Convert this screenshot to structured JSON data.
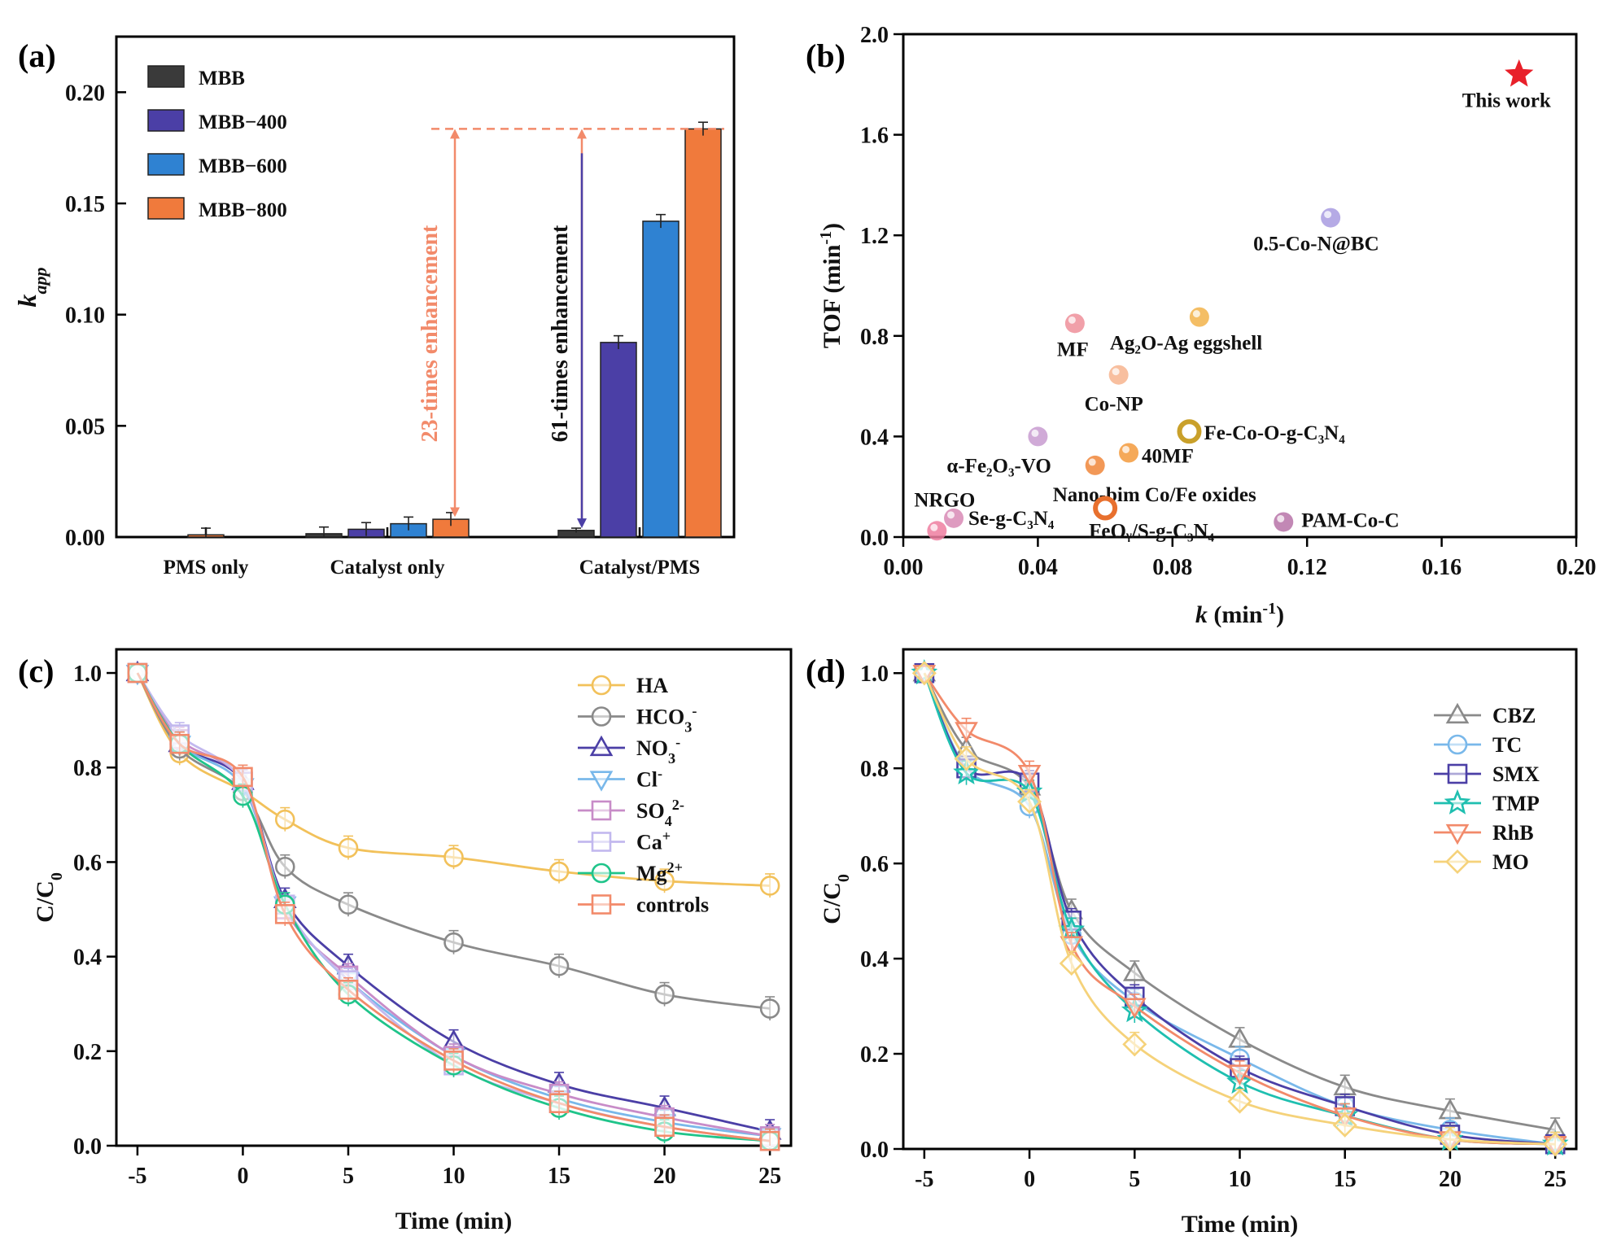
{
  "chart_data": [
    {
      "panel": "(a)",
      "type": "bar",
      "ylabel": "k",
      "ylabel_sub": "app",
      "ylim": [
        0,
        0.225
      ],
      "yticks": [
        "0.00",
        "0.05",
        "0.10",
        "0.15",
        "0.20"
      ],
      "ytick_values": [
        0,
        0.05,
        0.1,
        0.15,
        0.2
      ],
      "categories": [
        "PMS only",
        "Catalyst only",
        "Catalyst/PMS"
      ],
      "series": [
        {
          "name": "MBB",
          "color": "#3a3a3a",
          "values": [
            null,
            0.0015,
            0.003
          ],
          "errors": [
            null,
            0.003,
            0.001
          ]
        },
        {
          "name": "MBB−400",
          "color": "#4b3fa6",
          "values": [
            null,
            0.0035,
            0.0875
          ],
          "errors": [
            null,
            0.003,
            0.003
          ]
        },
        {
          "name": "MBB−600",
          "color": "#2f82d2",
          "values": [
            null,
            0.006,
            0.142
          ],
          "errors": [
            null,
            0.003,
            0.003
          ]
        },
        {
          "name": "MBB−800",
          "color": "#f07a3c",
          "values": [
            0.001,
            0.008,
            0.1835
          ],
          "errors": [
            0.003,
            0.003,
            0.003
          ]
        }
      ],
      "annotations": [
        "23-times enhancement",
        "61-times enhancement"
      ]
    },
    {
      "panel": "(b)",
      "type": "scatter",
      "xlabel": "k",
      "xlabel_unit": "(min",
      "xlabel_sup": "-1",
      "ylabel": "TOF (min",
      "ylabel_sup": "-1",
      "xlim": [
        0,
        0.2
      ],
      "ylim": [
        0,
        2.0
      ],
      "xticks": [
        "0.00",
        "0.04",
        "0.08",
        "0.12",
        "0.16",
        "0.20"
      ],
      "xtick_values": [
        0,
        0.04,
        0.08,
        0.12,
        0.16,
        0.2
      ],
      "yticks": [
        "0.0",
        "0.4",
        "0.8",
        "1.2",
        "1.6",
        "2.0"
      ],
      "ytick_values": [
        0,
        0.4,
        0.8,
        1.2,
        1.6,
        2.0
      ],
      "points": [
        {
          "label": "This work",
          "x": 0.183,
          "y": 1.84,
          "color": "#e8202a",
          "marker": "star"
        },
        {
          "label": "0.5-Co-N@BC",
          "x": 0.127,
          "y": 1.27,
          "color": "#a89be0",
          "marker": "ball"
        },
        {
          "label": "MF",
          "x": 0.051,
          "y": 0.85,
          "color": "#ef8f9a",
          "marker": "ball"
        },
        {
          "label": "Ag₂O-Ag eggshell",
          "x": 0.088,
          "y": 0.875,
          "color": "#f2b34a",
          "marker": "ball"
        },
        {
          "label": "Co-NP",
          "x": 0.064,
          "y": 0.645,
          "color": "#f7b48e",
          "marker": "ball"
        },
        {
          "label": "Fe-Co-O-g-C₃N₄",
          "x": 0.085,
          "y": 0.42,
          "color": "#c9a02a",
          "marker": "ring"
        },
        {
          "label": "α-Fe₂O₃-VO",
          "x": 0.04,
          "y": 0.4,
          "color": "#c89bd0",
          "marker": "ball"
        },
        {
          "label": "40MF",
          "x": 0.067,
          "y": 0.335,
          "color": "#f39a3c",
          "marker": "ball"
        },
        {
          "label": "Nano-bim Co/Fe oxides",
          "x": 0.057,
          "y": 0.285,
          "color": "#f0863a",
          "marker": "ball"
        },
        {
          "label": "NRGO",
          "x": 0.01,
          "y": 0.025,
          "color": "#ee7ea0",
          "marker": "ball"
        },
        {
          "label": "Se-g-C₃N₄",
          "x": 0.015,
          "y": 0.075,
          "color": "#d889b5",
          "marker": "ball"
        },
        {
          "label": "FeOᵧ/S-g-C₃N₄",
          "x": 0.06,
          "y": 0.115,
          "color": "#e8702e",
          "marker": "ring"
        },
        {
          "label": "PAM-Co-C",
          "x": 0.113,
          "y": 0.06,
          "color": "#b773a8",
          "marker": "ball"
        }
      ]
    },
    {
      "panel": "(c)",
      "type": "line",
      "xlabel": "Time (min)",
      "ylabel": "C/C",
      "ylabel_sub": "0",
      "xlim": [
        -6,
        26
      ],
      "ylim": [
        0,
        1.05
      ],
      "xticks": [
        "-5",
        "0",
        "5",
        "10",
        "15",
        "20",
        "25"
      ],
      "xtick_values": [
        -5,
        0,
        5,
        10,
        15,
        20,
        25
      ],
      "yticks": [
        "0.0",
        "0.2",
        "0.4",
        "0.6",
        "0.8",
        "1.0"
      ],
      "ytick_values": [
        0,
        0.2,
        0.4,
        0.6,
        0.8,
        1.0
      ],
      "x": [
        -5,
        -3,
        0,
        2,
        5,
        10,
        15,
        20,
        25
      ],
      "series": [
        {
          "name": "HA",
          "sup": "",
          "sub": "",
          "color": "#f2c15a",
          "marker": "circle",
          "values": [
            1.0,
            0.83,
            0.75,
            0.69,
            0.63,
            0.61,
            0.58,
            0.56,
            0.55
          ]
        },
        {
          "name": "HCO",
          "sub": "3",
          "sup": "-",
          "color": "#8a8a8a",
          "marker": "circle",
          "values": [
            1.0,
            0.84,
            0.75,
            0.59,
            0.51,
            0.43,
            0.38,
            0.32,
            0.29
          ]
        },
        {
          "name": "NO",
          "sub": "3",
          "sup": "-",
          "color": "#4b3fa6",
          "marker": "triangle-up",
          "values": [
            1.0,
            0.85,
            0.77,
            0.52,
            0.38,
            0.22,
            0.13,
            0.08,
            0.03
          ]
        },
        {
          "name": "Cl",
          "sub": "",
          "sup": "-",
          "color": "#79b8ea",
          "marker": "triangle-down",
          "values": [
            1.0,
            0.85,
            0.76,
            0.51,
            0.35,
            0.19,
            0.1,
            0.05,
            0.02
          ]
        },
        {
          "name": "SO",
          "sub": "4",
          "sup": "2-",
          "color": "#c88cc8",
          "marker": "square",
          "values": [
            1.0,
            0.86,
            0.77,
            0.5,
            0.36,
            0.19,
            0.11,
            0.06,
            0.02
          ]
        },
        {
          "name": "Ca",
          "sub": "",
          "sup": "+",
          "color": "#c2b8ee",
          "marker": "square",
          "values": [
            1.0,
            0.87,
            0.77,
            0.51,
            0.35,
            0.17,
            0.09,
            0.04,
            0.01
          ]
        },
        {
          "name": "Mg",
          "sub": "",
          "sup": "2+",
          "color": "#1fc48a",
          "marker": "circle",
          "values": [
            1.0,
            0.85,
            0.74,
            0.51,
            0.32,
            0.17,
            0.08,
            0.03,
            0.01
          ]
        },
        {
          "name": "controls",
          "sub": "",
          "sup": "",
          "color": "#f28a6a",
          "marker": "square",
          "values": [
            1.0,
            0.85,
            0.78,
            0.49,
            0.33,
            0.18,
            0.09,
            0.04,
            0.01
          ]
        }
      ]
    },
    {
      "panel": "(d)",
      "type": "line",
      "xlabel": "Time (min)",
      "ylabel": "C/C",
      "ylabel_sub": "0",
      "xlim": [
        -6,
        26
      ],
      "ylim": [
        0,
        1.05
      ],
      "xticks": [
        "-5",
        "0",
        "5",
        "10",
        "15",
        "20",
        "25"
      ],
      "xtick_values": [
        -5,
        0,
        5,
        10,
        15,
        20,
        25
      ],
      "yticks": [
        "0.0",
        "0.2",
        "0.4",
        "0.6",
        "0.8",
        "1.0"
      ],
      "ytick_values": [
        0,
        0.2,
        0.4,
        0.6,
        0.8,
        1.0
      ],
      "x": [
        -5,
        -3,
        0,
        2,
        5,
        10,
        15,
        20,
        25
      ],
      "series": [
        {
          "name": "CBZ",
          "color": "#8a8a8a",
          "marker": "triangle-up",
          "values": [
            1.0,
            0.84,
            0.76,
            0.5,
            0.37,
            0.23,
            0.13,
            0.08,
            0.04
          ]
        },
        {
          "name": "TC",
          "color": "#79b8ea",
          "marker": "circle",
          "values": [
            1.0,
            0.8,
            0.72,
            0.45,
            0.31,
            0.19,
            0.09,
            0.04,
            0.01
          ]
        },
        {
          "name": "SMX",
          "color": "#4b3fa6",
          "marker": "square",
          "values": [
            1.0,
            0.8,
            0.77,
            0.48,
            0.32,
            0.17,
            0.09,
            0.03,
            0.01
          ]
        },
        {
          "name": "TMP",
          "color": "#1fbfb0",
          "marker": "star",
          "values": [
            1.0,
            0.79,
            0.75,
            0.46,
            0.29,
            0.14,
            0.07,
            0.02,
            0.01
          ]
        },
        {
          "name": "RhB",
          "color": "#f28a6a",
          "marker": "triangle-down",
          "values": [
            1.0,
            0.88,
            0.79,
            0.43,
            0.3,
            0.16,
            0.07,
            0.02,
            0.01
          ]
        },
        {
          "name": "MO",
          "color": "#f5d27a",
          "marker": "diamond",
          "values": [
            1.0,
            0.82,
            0.73,
            0.39,
            0.22,
            0.1,
            0.05,
            0.02,
            0.01
          ]
        }
      ]
    }
  ]
}
